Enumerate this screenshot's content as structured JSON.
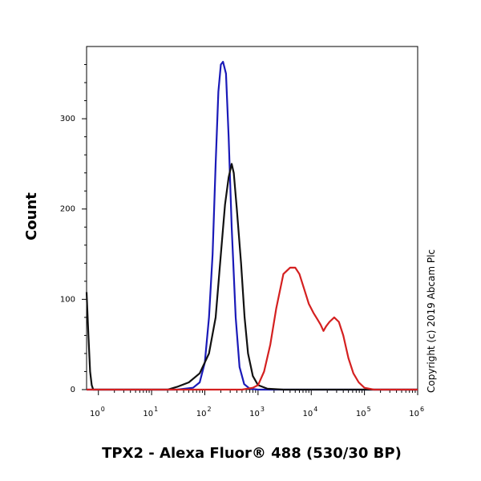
{
  "chart_data": {
    "type": "line",
    "title": "",
    "xlabel": "TPX2 - Alexa Fluor® 488 (530/30 BP)",
    "ylabel": "Count",
    "x_scale": "log",
    "xlim": [
      0.6,
      1000000
    ],
    "ylim": [
      0,
      380
    ],
    "x_tick_labels": [
      {
        "base": "10",
        "exp": "0",
        "value": 1
      },
      {
        "base": "10",
        "exp": "1",
        "value": 10
      },
      {
        "base": "10",
        "exp": "2",
        "value": 100
      },
      {
        "base": "10",
        "exp": "3",
        "value": 1000
      },
      {
        "base": "10",
        "exp": "4",
        "value": 10000
      },
      {
        "base": "10",
        "exp": "5",
        "value": 100000
      },
      {
        "base": "10",
        "exp": "6",
        "value": 1000000
      }
    ],
    "y_ticks": [
      0,
      100,
      200,
      300
    ],
    "annotation": "Copyright (c) 2019 Abcam Plc",
    "series": [
      {
        "color": "#1a1ab8",
        "points": [
          [
            0.6,
            0
          ],
          [
            30,
            0
          ],
          [
            60,
            2
          ],
          [
            80,
            8
          ],
          [
            100,
            30
          ],
          [
            120,
            80
          ],
          [
            140,
            150
          ],
          [
            160,
            250
          ],
          [
            180,
            330
          ],
          [
            200,
            360
          ],
          [
            220,
            363
          ],
          [
            250,
            350
          ],
          [
            280,
            280
          ],
          [
            320,
            180
          ],
          [
            380,
            80
          ],
          [
            450,
            25
          ],
          [
            550,
            6
          ],
          [
            700,
            1
          ],
          [
            1000,
            0
          ],
          [
            1000000,
            0
          ]
        ]
      },
      {
        "color": "#111111",
        "points": [
          [
            0.6,
            108
          ],
          [
            0.65,
            60
          ],
          [
            0.7,
            20
          ],
          [
            0.75,
            5
          ],
          [
            0.8,
            0
          ],
          [
            20,
            0
          ],
          [
            30,
            3
          ],
          [
            50,
            8
          ],
          [
            80,
            18
          ],
          [
            120,
            40
          ],
          [
            160,
            80
          ],
          [
            200,
            150
          ],
          [
            240,
            205
          ],
          [
            280,
            235
          ],
          [
            320,
            250
          ],
          [
            350,
            240
          ],
          [
            400,
            200
          ],
          [
            480,
            140
          ],
          [
            560,
            80
          ],
          [
            650,
            40
          ],
          [
            800,
            15
          ],
          [
            1000,
            5
          ],
          [
            1500,
            1
          ],
          [
            3000,
            0
          ],
          [
            1000000,
            0
          ]
        ]
      },
      {
        "color": "#d42020",
        "points": [
          [
            0.6,
            0
          ],
          [
            500,
            0
          ],
          [
            800,
            2
          ],
          [
            1000,
            5
          ],
          [
            1300,
            20
          ],
          [
            1700,
            50
          ],
          [
            2200,
            90
          ],
          [
            3000,
            128
          ],
          [
            4000,
            135
          ],
          [
            5000,
            135
          ],
          [
            6000,
            128
          ],
          [
            7500,
            110
          ],
          [
            9000,
            95
          ],
          [
            11000,
            85
          ],
          [
            13000,
            78
          ],
          [
            15000,
            72
          ],
          [
            17000,
            65
          ],
          [
            19000,
            70
          ],
          [
            22000,
            75
          ],
          [
            27000,
            80
          ],
          [
            33000,
            75
          ],
          [
            40000,
            60
          ],
          [
            50000,
            35
          ],
          [
            62000,
            18
          ],
          [
            78000,
            8
          ],
          [
            100000,
            2
          ],
          [
            150000,
            0
          ],
          [
            1000000,
            0
          ]
        ]
      }
    ]
  }
}
